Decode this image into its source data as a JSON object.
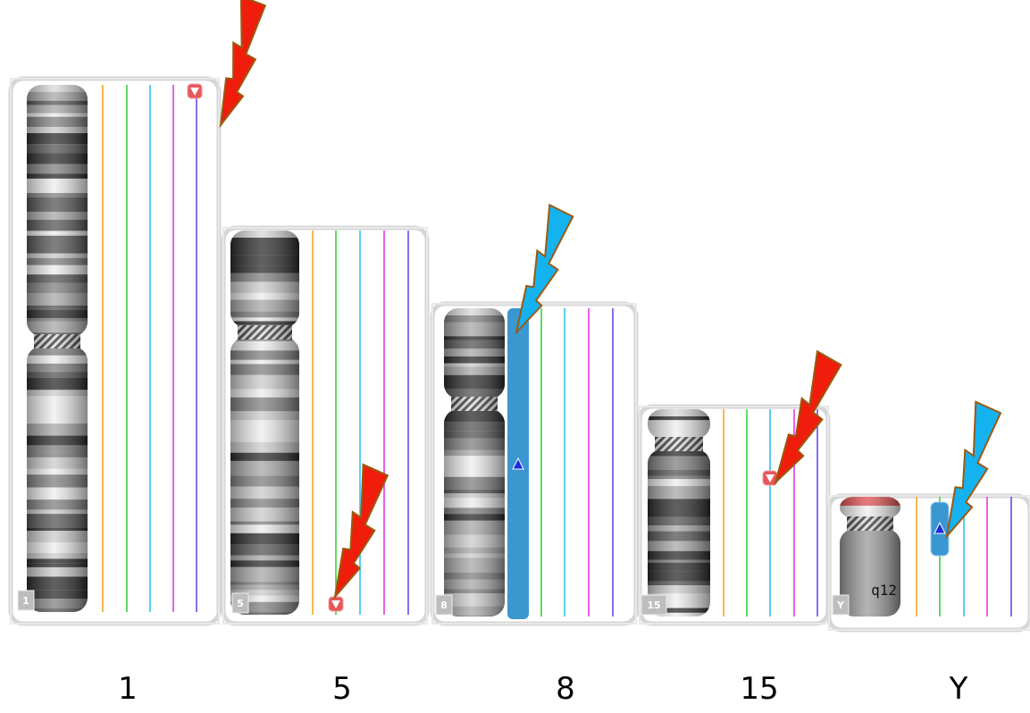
{
  "chromosomes": [
    {
      "tag": "1",
      "caption": "1"
    },
    {
      "tag": "5",
      "caption": "5"
    },
    {
      "tag": "8",
      "caption": "8"
    },
    {
      "tag": "15",
      "caption": "15"
    },
    {
      "tag": "Y",
      "caption": "Y",
      "band_label": "q12"
    }
  ]
}
